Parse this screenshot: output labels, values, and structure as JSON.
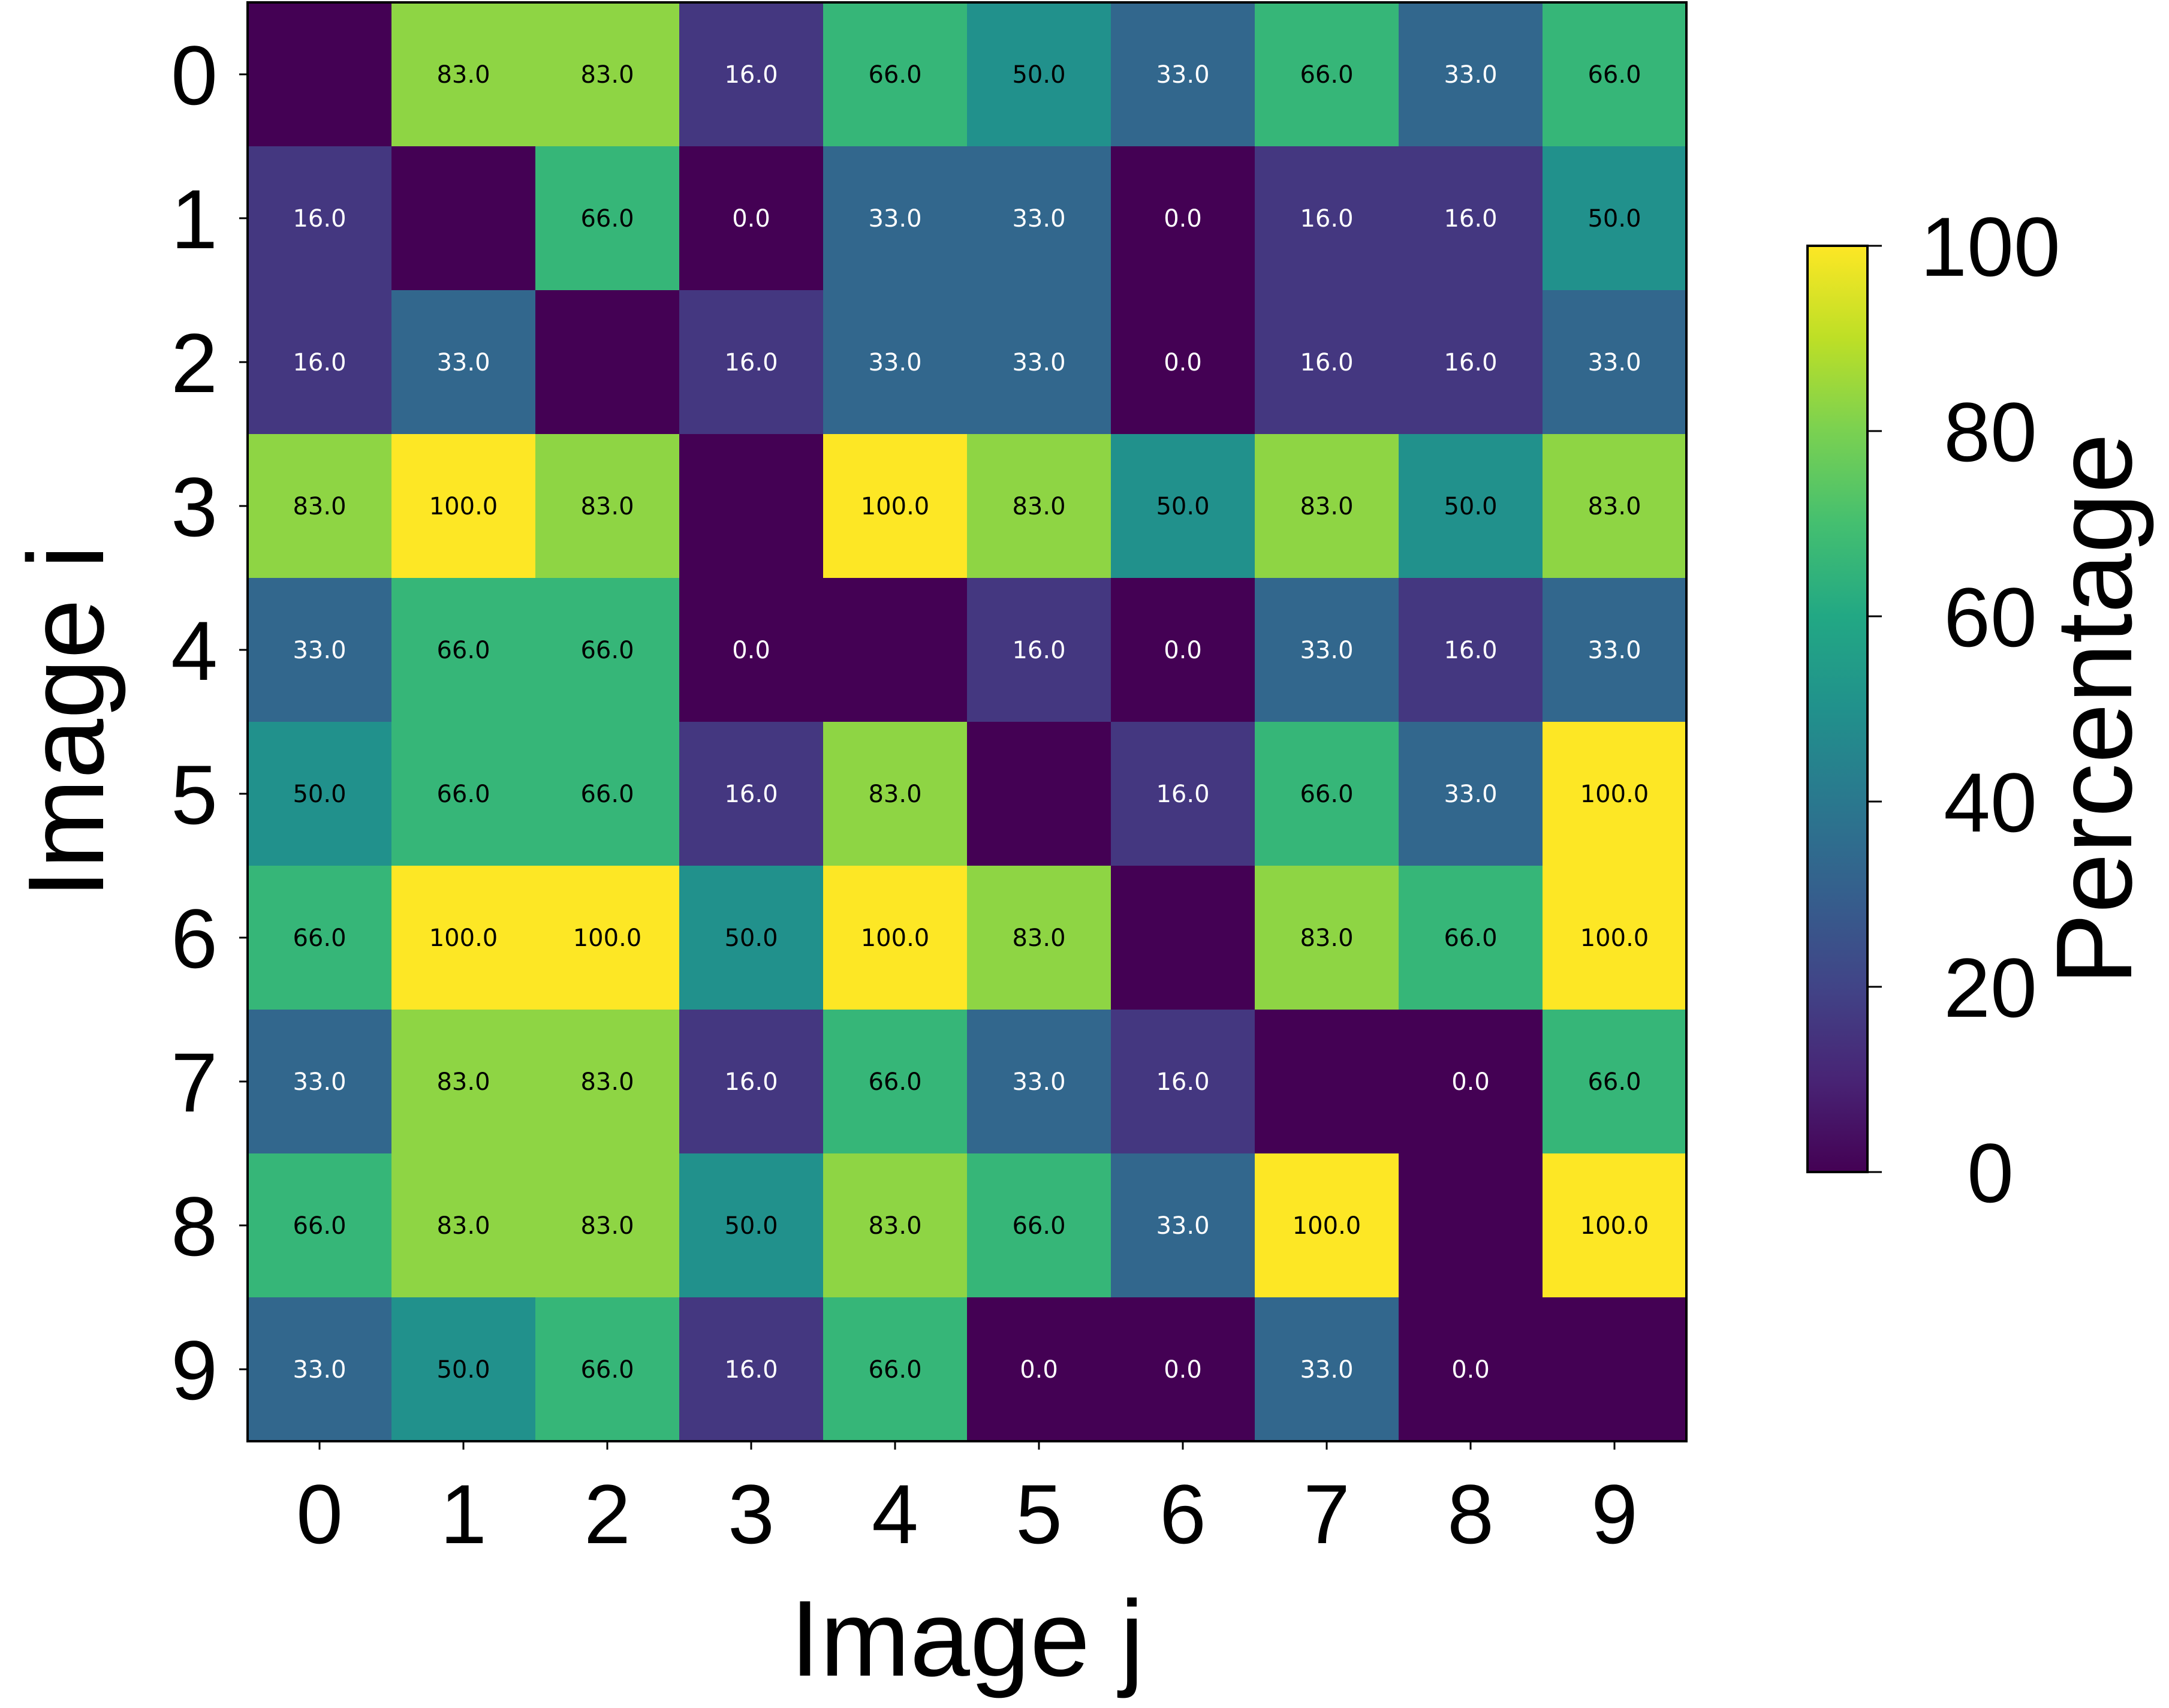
{
  "chart_data": {
    "type": "heatmap",
    "xlabel": "Image j",
    "ylabel": "Image i",
    "x_categories": [
      "0",
      "1",
      "2",
      "3",
      "4",
      "5",
      "6",
      "7",
      "8",
      "9"
    ],
    "y_categories": [
      "0",
      "1",
      "2",
      "3",
      "4",
      "5",
      "6",
      "7",
      "8",
      "9"
    ],
    "values": [
      [
        null,
        83.0,
        83.0,
        16.0,
        66.0,
        50.0,
        33.0,
        66.0,
        33.0,
        66.0
      ],
      [
        16.0,
        null,
        66.0,
        0.0,
        33.0,
        33.0,
        0.0,
        16.0,
        16.0,
        50.0
      ],
      [
        16.0,
        33.0,
        null,
        16.0,
        33.0,
        33.0,
        0.0,
        16.0,
        16.0,
        33.0
      ],
      [
        83.0,
        100.0,
        83.0,
        null,
        100.0,
        83.0,
        50.0,
        83.0,
        50.0,
        83.0
      ],
      [
        33.0,
        66.0,
        66.0,
        0.0,
        null,
        16.0,
        0.0,
        33.0,
        16.0,
        33.0
      ],
      [
        50.0,
        66.0,
        66.0,
        16.0,
        83.0,
        null,
        16.0,
        66.0,
        33.0,
        100.0
      ],
      [
        66.0,
        100.0,
        100.0,
        50.0,
        100.0,
        83.0,
        null,
        83.0,
        66.0,
        100.0
      ],
      [
        33.0,
        83.0,
        83.0,
        16.0,
        66.0,
        33.0,
        16.0,
        null,
        0.0,
        66.0
      ],
      [
        66.0,
        83.0,
        83.0,
        50.0,
        83.0,
        66.0,
        33.0,
        100.0,
        null,
        100.0
      ],
      [
        33.0,
        50.0,
        66.0,
        16.0,
        66.0,
        0.0,
        0.0,
        33.0,
        0.0,
        null
      ]
    ],
    "colormap": "viridis",
    "color_range": [
      0,
      100
    ],
    "colorbar": {
      "label": "Percentage",
      "ticks": [
        "0",
        "20",
        "40",
        "60",
        "80",
        "100"
      ]
    },
    "grid": false
  }
}
